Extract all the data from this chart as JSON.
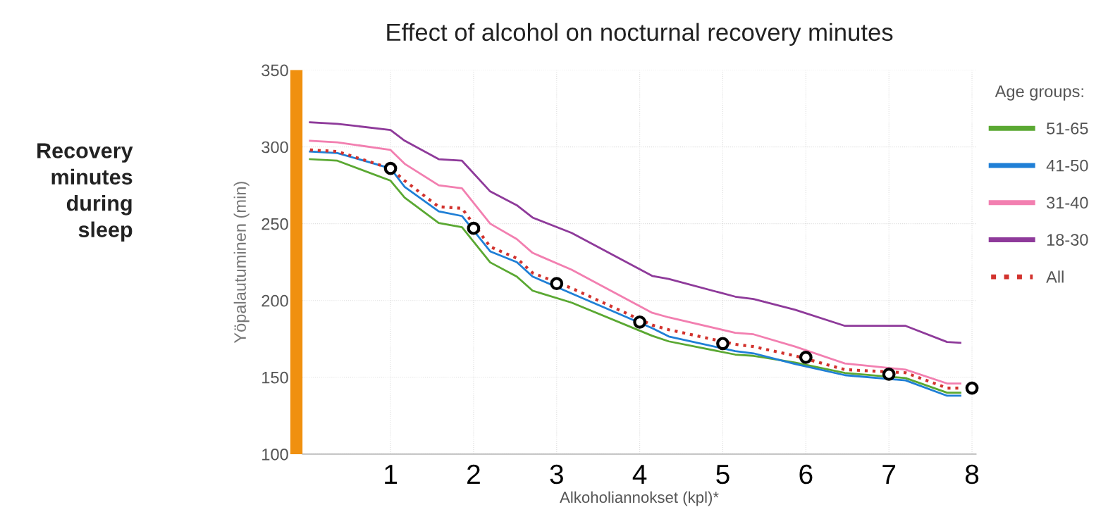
{
  "chart_data": {
    "type": "line",
    "title": "Effect of alcohol on nocturnal recovery minutes",
    "xlabel": "Alkoholiannokset (kpl)*",
    "ylabel": "Yöpalautuminen (min)",
    "legend_title": "Age groups:",
    "annotations": [
      "Recovery\nminutes\nduring\nsleep"
    ],
    "x": [
      0.03,
      0.36,
      1.0,
      1.17,
      1.58,
      1.86,
      2.2,
      2.52,
      2.71,
      3.18,
      4.15,
      4.35,
      5.15,
      5.37,
      5.87,
      6.47,
      7.2,
      7.7,
      7.86
    ],
    "series": [
      {
        "name": "51-65",
        "color": "#5aa832",
        "values": [
          292,
          291,
          278,
          267,
          250.5,
          247.7,
          224.8,
          215.6,
          206.4,
          198.6,
          177,
          173.4,
          164.8,
          164,
          159.6,
          152.8,
          149.5,
          140,
          140
        ]
      },
      {
        "name": "41-50",
        "color": "#1f7fd6",
        "values": [
          297,
          296,
          286,
          274,
          258,
          255,
          232,
          225,
          215.6,
          204.6,
          182,
          176.6,
          167,
          165.6,
          158.7,
          151.4,
          148,
          138,
          138
        ]
      },
      {
        "name": "31-40",
        "color": "#f27fb0",
        "values": [
          304,
          303,
          298,
          289,
          275,
          273,
          250,
          240,
          231,
          220,
          192,
          189,
          179,
          178,
          170,
          159,
          155,
          146,
          146
        ]
      },
      {
        "name": "18-30",
        "color": "#8e3a9a",
        "values": [
          316,
          315,
          311,
          304,
          292,
          291,
          271,
          262,
          254,
          244,
          216,
          214,
          202.5,
          201,
          194,
          183.5,
          183.5,
          173,
          172.5
        ]
      },
      {
        "name": "All",
        "color": "#d2322d",
        "line_style": "dotted",
        "values": [
          298,
          297,
          286,
          278,
          261,
          260,
          235,
          227.5,
          218,
          208,
          184,
          181,
          171.5,
          170,
          164,
          155,
          153,
          143,
          143
        ]
      },
      {
        "type": "scatter",
        "color": "#000000",
        "marker": "circle",
        "x": [
          1,
          2,
          3,
          4,
          5,
          6,
          7,
          8
        ],
        "values": [
          286,
          247,
          211,
          186,
          172,
          163,
          152,
          143
        ]
      }
    ],
    "xlim": [
      -0.06,
      8.05
    ],
    "xticks": [
      1,
      2,
      3,
      4,
      5,
      6,
      7,
      8
    ],
    "ylim": [
      100,
      350
    ],
    "yticks": [
      100,
      150,
      200,
      250,
      300,
      350
    ],
    "grid": true,
    "legend": "right",
    "marker": "none",
    "line_style": "solid"
  }
}
